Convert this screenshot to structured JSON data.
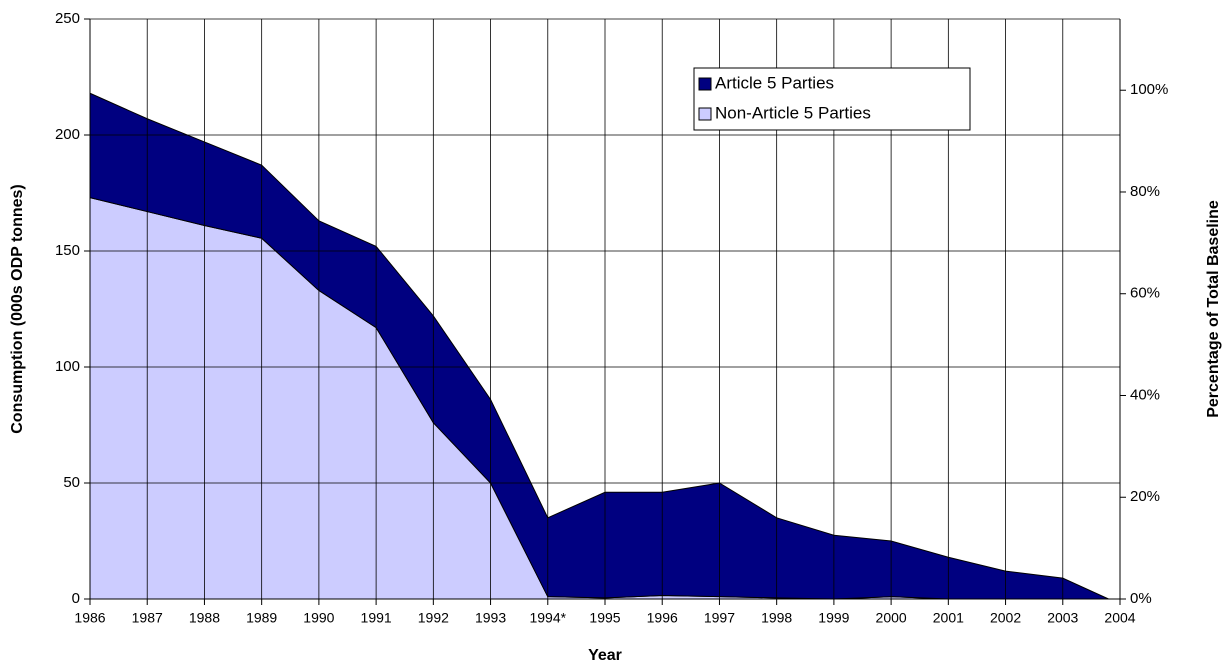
{
  "chart_data": {
    "type": "stacked_area",
    "x_label": "Year",
    "y_label": "Consumption (000s ODP tonnes)",
    "y2_label": "Percentage of Total Baseline",
    "x": [
      1986,
      1987,
      1988,
      1989,
      1990,
      1991,
      1992,
      1993,
      1994,
      1995,
      1996,
      1997,
      1998,
      1999,
      2000,
      2001,
      2002,
      2003,
      2003.8
    ],
    "series": [
      {
        "name": "Non-Article 5 Parties",
        "color": "#ccccff",
        "values": [
          173,
          167,
          161,
          155.5,
          133,
          117,
          76,
          50,
          1,
          0.5,
          1.5,
          1,
          0.5,
          0,
          1,
          0,
          0,
          0,
          0
        ]
      },
      {
        "name": "Article 5 Parties",
        "color": "#000080",
        "values": [
          45,
          40,
          36,
          31.5,
          30,
          35,
          46,
          36,
          34,
          45.5,
          44.5,
          49,
          34.5,
          27.5,
          24,
          18,
          12,
          9,
          0
        ]
      }
    ],
    "xlim": [
      1986,
      2004
    ],
    "xticks": [
      1986,
      1987,
      1988,
      1989,
      1990,
      1991,
      1992,
      1993,
      {
        "value": 1994,
        "label": "1994*"
      },
      1995,
      1996,
      1997,
      1998,
      1999,
      2000,
      2001,
      2002,
      2003,
      2004
    ],
    "ylim": [
      0,
      250
    ],
    "yticks": [
      0,
      50,
      100,
      150,
      200,
      250
    ],
    "y2lim": [
      0,
      114
    ],
    "y2ticks": [
      {
        "value": 0,
        "label": "0%"
      },
      {
        "value": 20,
        "label": "20%"
      },
      {
        "value": 40,
        "label": "40%"
      },
      {
        "value": 60,
        "label": "60%"
      },
      {
        "value": 80,
        "label": "80%"
      },
      {
        "value": 100,
        "label": "100%"
      }
    ],
    "grid": true,
    "legend": "top-right"
  }
}
